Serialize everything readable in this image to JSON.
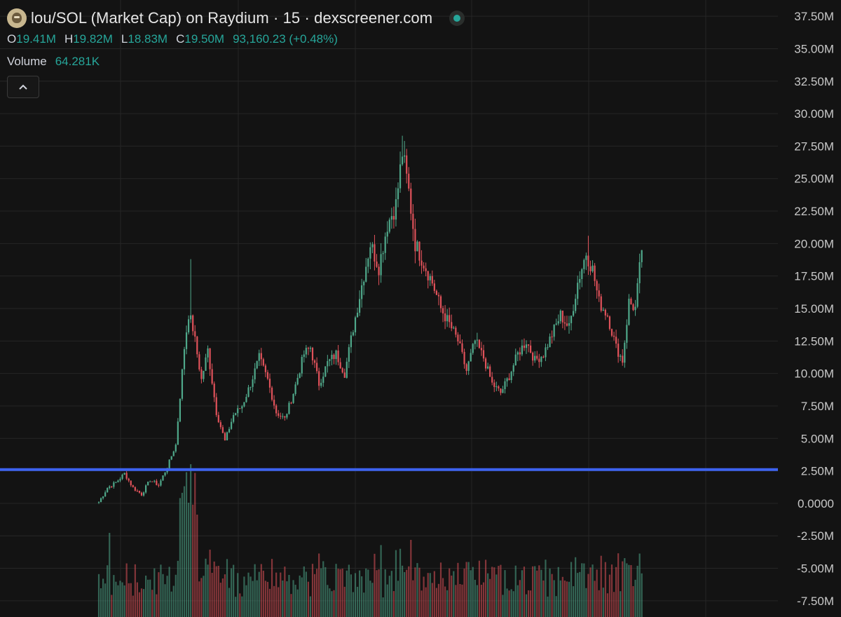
{
  "header": {
    "title": "lou/SOL (Market Cap) on Raydium · 15 · dexscreener.com",
    "status_color": "#26a69a",
    "ohlc": {
      "o_label": "O",
      "o_value": "19.41M",
      "h_label": "H",
      "h_value": "19.82M",
      "l_label": "L",
      "l_value": "18.83M",
      "c_label": "C",
      "c_value": "19.50M",
      "change": "93,160.23 (+0.48%)"
    },
    "volume_label": "Volume",
    "volume_value": "64.281K"
  },
  "colors": {
    "background": "#131313",
    "up": "#4fa88a",
    "down": "#e0525a",
    "level_line": "#3d63f0",
    "grid": "#262626",
    "axis_text": "#c8c8c8"
  },
  "chart_data": {
    "type": "candlestick",
    "y_axis": {
      "min": -8750000,
      "max": 38750000,
      "ticks": [
        "37.50M",
        "35.00M",
        "32.50M",
        "30.00M",
        "27.50M",
        "25.00M",
        "22.50M",
        "20.00M",
        "17.50M",
        "15.00M",
        "12.50M",
        "10.00M",
        "7.50M",
        "5.00M",
        "2.50M",
        "0.0000",
        "-2.50M",
        "-5.00M",
        "-7.50M"
      ],
      "tick_values": [
        37500000,
        35000000,
        32500000,
        30000000,
        27500000,
        25000000,
        22500000,
        20000000,
        17500000,
        15000000,
        12500000,
        10000000,
        7500000,
        5000000,
        2500000,
        0,
        -2500000,
        -5000000,
        -7500000
      ]
    },
    "horizontal_line": {
      "value": 2600000
    },
    "grid": true,
    "keypoints": [
      {
        "i": 0,
        "p": 0.1
      },
      {
        "i": 4,
        "p": 1.2
      },
      {
        "i": 8,
        "p": 1.6
      },
      {
        "i": 12,
        "p": 2.3
      },
      {
        "i": 16,
        "p": 1.2
      },
      {
        "i": 20,
        "p": 0.7
      },
      {
        "i": 24,
        "p": 1.8
      },
      {
        "i": 28,
        "p": 1.4
      },
      {
        "i": 32,
        "p": 2.8
      },
      {
        "i": 36,
        "p": 4.5
      },
      {
        "i": 40,
        "p": 12.0
      },
      {
        "i": 42,
        "p": 14.6
      },
      {
        "i": 44,
        "p": 13.5
      },
      {
        "i": 48,
        "p": 9.5
      },
      {
        "i": 51,
        "p": 11.8
      },
      {
        "i": 55,
        "p": 7.0
      },
      {
        "i": 59,
        "p": 4.8
      },
      {
        "i": 63,
        "p": 6.8
      },
      {
        "i": 67,
        "p": 7.5
      },
      {
        "i": 71,
        "p": 9.2
      },
      {
        "i": 75,
        "p": 11.2
      },
      {
        "i": 79,
        "p": 9.5
      },
      {
        "i": 83,
        "p": 7.0
      },
      {
        "i": 87,
        "p": 6.5
      },
      {
        "i": 91,
        "p": 8.5
      },
      {
        "i": 96,
        "p": 11.5
      },
      {
        "i": 99,
        "p": 12.0
      },
      {
        "i": 103,
        "p": 9.2
      },
      {
        "i": 107,
        "p": 10.8
      },
      {
        "i": 111,
        "p": 11.5
      },
      {
        "i": 115,
        "p": 10.0
      },
      {
        "i": 119,
        "p": 13.5
      },
      {
        "i": 123,
        "p": 16.8
      },
      {
        "i": 127,
        "p": 20.0
      },
      {
        "i": 131,
        "p": 18.2
      },
      {
        "i": 135,
        "p": 21.5
      },
      {
        "i": 139,
        "p": 23.0
      },
      {
        "i": 142,
        "p": 27.0
      },
      {
        "i": 145,
        "p": 24.0
      },
      {
        "i": 148,
        "p": 20.0
      },
      {
        "i": 152,
        "p": 18.5
      },
      {
        "i": 156,
        "p": 17.0
      },
      {
        "i": 160,
        "p": 15.0
      },
      {
        "i": 164,
        "p": 13.8
      },
      {
        "i": 168,
        "p": 12.5
      },
      {
        "i": 172,
        "p": 10.2
      },
      {
        "i": 176,
        "p": 12.5
      },
      {
        "i": 180,
        "p": 11.2
      },
      {
        "i": 184,
        "p": 9.2
      },
      {
        "i": 188,
        "p": 8.5
      },
      {
        "i": 192,
        "p": 9.8
      },
      {
        "i": 196,
        "p": 11.5
      },
      {
        "i": 200,
        "p": 12.5
      },
      {
        "i": 204,
        "p": 11.0
      },
      {
        "i": 208,
        "p": 11.5
      },
      {
        "i": 212,
        "p": 13.0
      },
      {
        "i": 216,
        "p": 14.5
      },
      {
        "i": 220,
        "p": 13.5
      },
      {
        "i": 224,
        "p": 17.0
      },
      {
        "i": 228,
        "p": 19.3
      },
      {
        "i": 231,
        "p": 18.0
      },
      {
        "i": 234,
        "p": 15.5
      },
      {
        "i": 238,
        "p": 14.5
      },
      {
        "i": 242,
        "p": 12.0
      },
      {
        "i": 245,
        "p": 11.0
      },
      {
        "i": 248,
        "p": 15.5
      },
      {
        "i": 251,
        "p": 15.0
      },
      {
        "i": 254,
        "p": 19.5
      }
    ]
  }
}
